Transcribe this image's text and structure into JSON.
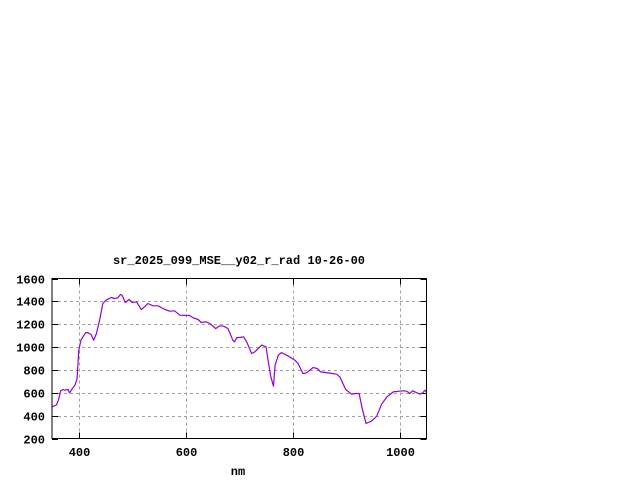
{
  "chart_data": {
    "type": "line",
    "title": "sr_2025_099_MSE__y02_r_rad 10-26-00",
    "xlabel": "nm",
    "ylabel": "",
    "xlim": [
      350,
      1050
    ],
    "ylim": [
      200,
      1600
    ],
    "xticks": [
      400,
      600,
      800,
      1000
    ],
    "yticks": [
      200,
      400,
      600,
      800,
      1000,
      1200,
      1400,
      1600
    ],
    "grid": true,
    "legend": "none",
    "series": [
      {
        "color": "#9400d3",
        "x": [
          350,
          358,
          362,
          366,
          371,
          374,
          380,
          383,
          388,
          393,
          397,
          400,
          404,
          408,
          413,
          417,
          423,
          428,
          433,
          439,
          445,
          451,
          461,
          467,
          473,
          478,
          481,
          487,
          494,
          500,
          508,
          517,
          523,
          529,
          539,
          548,
          554,
          561,
          570,
          579,
          589,
          607,
          614,
          623,
          629,
          638,
          645,
          656,
          663,
          671,
          679,
          688,
          691,
          696,
          701,
          708,
          714,
          723,
          729,
          742,
          750,
          754,
          759,
          764,
          767,
          773,
          779,
          792,
          804,
          810,
          819,
          826,
          838,
          846,
          852,
          863,
          882,
          888,
          899,
          910,
          918,
          924,
          929,
          937,
          948,
          957,
          966,
          976,
          988,
          999,
          1007,
          1013,
          1019,
          1024,
          1032,
          1038,
          1043,
          1047,
          1050
        ],
        "y": [
          477,
          492,
          535,
          617,
          629,
          623,
          629,
          600,
          637,
          667,
          725,
          973,
          1060,
          1090,
          1127,
          1127,
          1110,
          1060,
          1118,
          1235,
          1381,
          1410,
          1434,
          1425,
          1431,
          1460,
          1454,
          1390,
          1416,
          1390,
          1396,
          1329,
          1352,
          1381,
          1361,
          1361,
          1346,
          1329,
          1314,
          1317,
          1279,
          1276,
          1256,
          1241,
          1215,
          1221,
          1206,
          1162,
          1186,
          1183,
          1162,
          1060,
          1046,
          1084,
          1084,
          1090,
          1046,
          944,
          958,
          1017,
          1002,
          885,
          740,
          658,
          842,
          929,
          952,
          920,
          885,
          856,
          769,
          775,
          821,
          812,
          783,
          777,
          763,
          740,
          629,
          588,
          594,
          594,
          477,
          331,
          355,
          395,
          500,
          564,
          608,
          614,
          617,
          614,
          594,
          617,
          600,
          588,
          600,
          623,
          608
        ]
      }
    ]
  }
}
